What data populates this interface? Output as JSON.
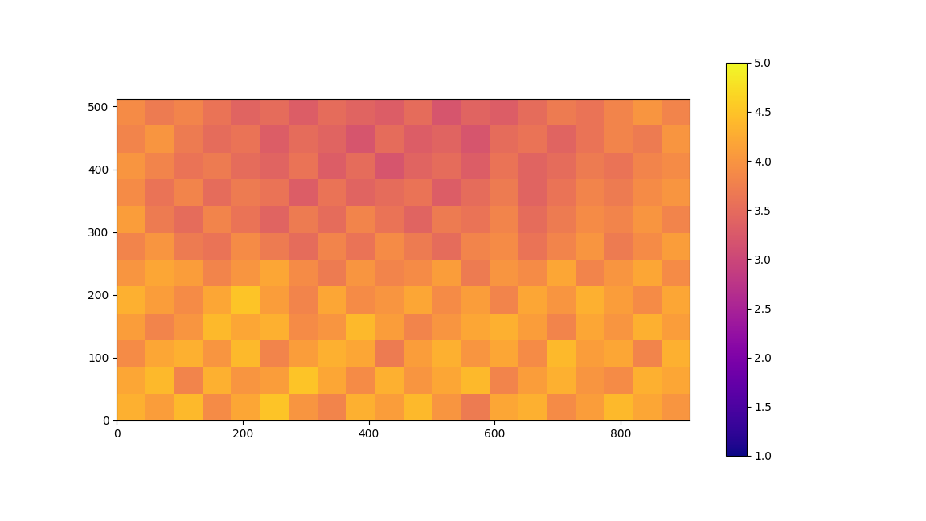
{
  "chart_data": {
    "type": "heatmap",
    "color": "plasma",
    "xlim": [
      0,
      910
    ],
    "ylim": [
      0,
      512
    ],
    "xticks": [
      0,
      200,
      400,
      600,
      800
    ],
    "yticks": [
      0,
      100,
      200,
      300,
      400,
      500
    ],
    "color_range": [
      1,
      5
    ],
    "color_ticks": [
      {
        "value": 1,
        "label": "1.0"
      },
      {
        "value": 1.5,
        "label": "1.5"
      },
      {
        "value": 2,
        "label": "2.0"
      },
      {
        "value": 2.5,
        "label": "2.5"
      },
      {
        "value": 3,
        "label": "3.0"
      },
      {
        "value": 3.5,
        "label": "3.5"
      },
      {
        "value": 4,
        "label": "4.0"
      },
      {
        "value": 4.5,
        "label": "4.5"
      },
      {
        "value": 5,
        "label": "5.0"
      }
    ],
    "cells": [
      [
        4.3,
        4.1,
        4.4,
        3.9,
        4.2,
        4.5,
        4.0,
        3.8,
        4.3,
        4.1,
        4.4,
        4.0,
        3.7,
        4.2,
        4.3,
        3.9,
        4.1,
        4.4,
        4.2,
        4.0
      ],
      [
        4.2,
        4.4,
        3.8,
        4.3,
        4.0,
        4.1,
        4.5,
        4.2,
        3.9,
        4.3,
        4.0,
        4.2,
        4.4,
        3.8,
        4.1,
        4.3,
        4.0,
        3.9,
        4.3,
        4.2
      ],
      [
        3.9,
        4.2,
        4.3,
        4.0,
        4.4,
        3.8,
        4.1,
        4.3,
        4.2,
        3.7,
        4.1,
        4.3,
        4.0,
        4.2,
        3.9,
        4.4,
        4.1,
        4.2,
        3.8,
        4.3
      ],
      [
        4.1,
        3.8,
        4.0,
        4.4,
        4.2,
        4.3,
        3.9,
        4.0,
        4.4,
        4.1,
        3.8,
        4.0,
        4.2,
        4.3,
        4.1,
        3.8,
        4.2,
        4.0,
        4.3,
        4.1
      ],
      [
        4.3,
        4.1,
        3.9,
        4.2,
        4.5,
        4.1,
        3.8,
        4.2,
        3.9,
        4.0,
        4.2,
        3.9,
        4.1,
        3.8,
        4.2,
        4.0,
        4.3,
        4.1,
        3.9,
        4.2
      ],
      [
        4.0,
        4.2,
        4.1,
        3.8,
        4.0,
        4.2,
        3.9,
        3.7,
        4.0,
        3.8,
        3.9,
        4.1,
        3.7,
        4.0,
        3.9,
        4.2,
        3.8,
        4.0,
        4.2,
        3.9
      ],
      [
        3.8,
        4.0,
        3.7,
        3.6,
        3.9,
        3.7,
        3.5,
        3.8,
        3.6,
        3.9,
        3.7,
        3.5,
        3.8,
        3.9,
        3.6,
        3.8,
        4.0,
        3.7,
        3.9,
        4.1
      ],
      [
        4.1,
        3.7,
        3.5,
        3.8,
        3.6,
        3.4,
        3.7,
        3.5,
        3.8,
        3.6,
        3.4,
        3.7,
        3.6,
        3.8,
        3.5,
        3.7,
        3.9,
        3.8,
        4.0,
        3.8
      ],
      [
        3.9,
        3.6,
        3.8,
        3.5,
        3.7,
        3.6,
        3.3,
        3.6,
        3.4,
        3.5,
        3.6,
        3.3,
        3.5,
        3.7,
        3.4,
        3.6,
        3.8,
        3.7,
        3.9,
        4.0
      ],
      [
        4.0,
        3.8,
        3.6,
        3.7,
        3.5,
        3.4,
        3.6,
        3.3,
        3.5,
        3.2,
        3.4,
        3.5,
        3.3,
        3.6,
        3.4,
        3.5,
        3.7,
        3.6,
        3.8,
        3.9
      ],
      [
        3.8,
        4.0,
        3.7,
        3.5,
        3.6,
        3.3,
        3.5,
        3.4,
        3.2,
        3.5,
        3.3,
        3.4,
        3.2,
        3.5,
        3.6,
        3.4,
        3.6,
        3.8,
        3.7,
        4.0
      ],
      [
        3.9,
        3.7,
        3.8,
        3.6,
        3.4,
        3.5,
        3.3,
        3.5,
        3.4,
        3.3,
        3.5,
        3.2,
        3.4,
        3.3,
        3.5,
        3.7,
        3.6,
        3.8,
        4.0,
        3.8
      ]
    ]
  }
}
